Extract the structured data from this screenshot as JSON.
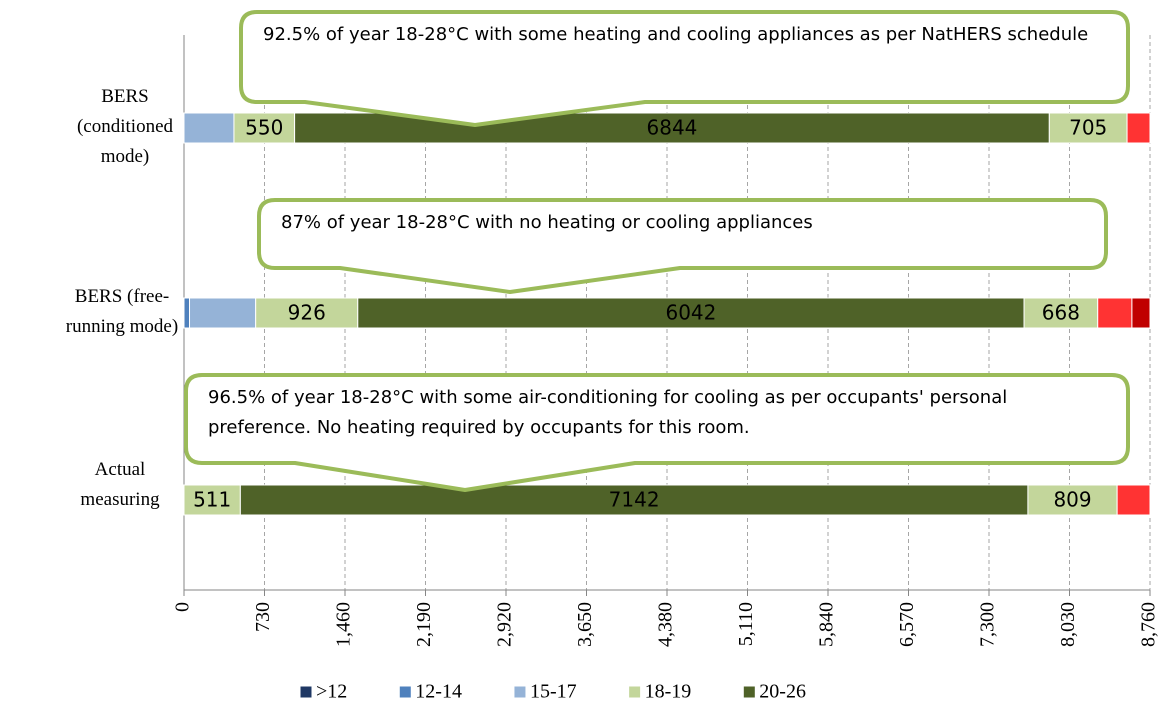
{
  "chart_data": {
    "type": "stacked-bar-horizontal",
    "categories": [
      "BERS (conditioned mode)",
      "BERS (free-running mode)",
      "Actual measuring"
    ],
    "series": [
      {
        "name": ">12",
        "color": "#1f3864",
        "values": [
          0,
          0,
          0
        ]
      },
      {
        "name": "12-14",
        "color": "#4f81bd",
        "values": [
          0,
          50,
          0
        ]
      },
      {
        "name": "15-17",
        "color": "#95b3d7",
        "values": [
          453,
          600,
          0
        ]
      },
      {
        "name": "18-19",
        "color": "#c3d69b",
        "values": [
          550,
          926,
          511
        ],
        "show_labels": true
      },
      {
        "name": "20-26",
        "color": "#4f6228",
        "values": [
          6844,
          6042,
          7142
        ],
        "show_labels": true
      },
      {
        "color": "#c3d69b",
        "values": [
          705,
          668,
          809
        ],
        "show_labels": true
      },
      {
        "color": "#ff3333",
        "values": [
          208,
          310,
          298
        ]
      },
      {
        "color": "#c00000",
        "values": [
          0,
          164,
          0
        ]
      }
    ],
    "xlim": [
      0,
      8760
    ],
    "xticks": [
      0,
      730,
      {
        "value": 1460,
        "label": "1,460"
      },
      {
        "value": 2190,
        "label": "2,190"
      },
      {
        "value": 2920,
        "label": "2,920"
      },
      {
        "value": 3650,
        "label": "3,650"
      },
      {
        "value": 4380,
        "label": "4,380"
      },
      {
        "value": 5110,
        "label": "5,110"
      },
      {
        "value": 5840,
        "label": "5,840"
      },
      {
        "value": 6570,
        "label": "6,570"
      },
      {
        "value": 7300,
        "label": "7,300"
      },
      {
        "value": 8030,
        "label": "8,030"
      },
      {
        "value": 8760,
        "label": "8,760"
      }
    ],
    "grid": true,
    "annotations": [
      "92.5% of year 18-28°C with some heating and cooling appliances as per NatHERS schedule",
      "87% of year 18-28°C with no heating or cooling appliances",
      "96.5% of year 18-28°C with some air-conditioning for cooling as per occupants' personal preference. No heating required by occupants for this room."
    ]
  }
}
